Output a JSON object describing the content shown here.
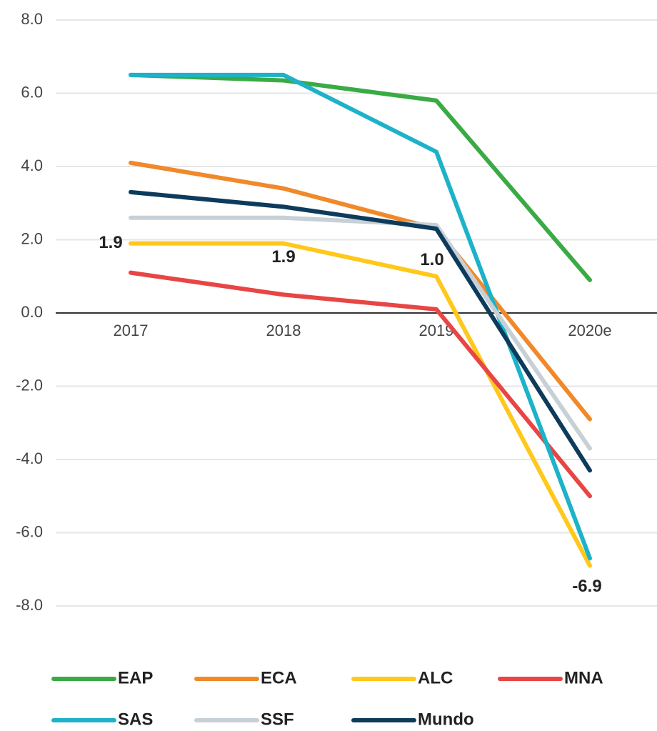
{
  "chart_data": {
    "type": "line",
    "categories": [
      "2017",
      "2018",
      "2019",
      "2020e"
    ],
    "series": [
      {
        "name": "EAP",
        "color": "#3aaa45",
        "values": [
          6.5,
          6.35,
          5.8,
          0.9
        ]
      },
      {
        "name": "ECA",
        "color": "#f0892a",
        "values": [
          4.1,
          3.4,
          2.3,
          -2.9
        ]
      },
      {
        "name": "ALC",
        "color": "#ffc81a",
        "values": [
          1.9,
          1.9,
          1.0,
          -6.9
        ],
        "value_labels": [
          "1.9",
          "1.9",
          "1.0",
          "-6.9"
        ]
      },
      {
        "name": "MNA",
        "color": "#e84545",
        "values": [
          1.1,
          0.5,
          0.1,
          -5.0
        ]
      },
      {
        "name": "SAS",
        "color": "#1db2c8",
        "values": [
          6.5,
          6.5,
          4.4,
          -6.7
        ]
      },
      {
        "name": "SSF",
        "color": "#c7d0d6",
        "values": [
          2.6,
          2.6,
          2.4,
          -3.7
        ]
      },
      {
        "name": "Mundo",
        "color": "#0d3b5c",
        "values": [
          3.3,
          2.9,
          2.3,
          -4.3
        ]
      }
    ],
    "ylim": [
      -8,
      8
    ],
    "yticks": [
      {
        "value": 8,
        "label": "8.0"
      },
      {
        "value": 6,
        "label": "6.0"
      },
      {
        "value": 4,
        "label": "4.0"
      },
      {
        "value": 2,
        "label": "2.0"
      },
      {
        "value": 0,
        "label": "0.0"
      },
      {
        "value": -2,
        "label": "-2.0"
      },
      {
        "value": -4,
        "label": "-4.0"
      },
      {
        "value": -6,
        "label": "-6.0"
      },
      {
        "value": -8,
        "label": "-8.0"
      }
    ],
    "grid": true
  }
}
